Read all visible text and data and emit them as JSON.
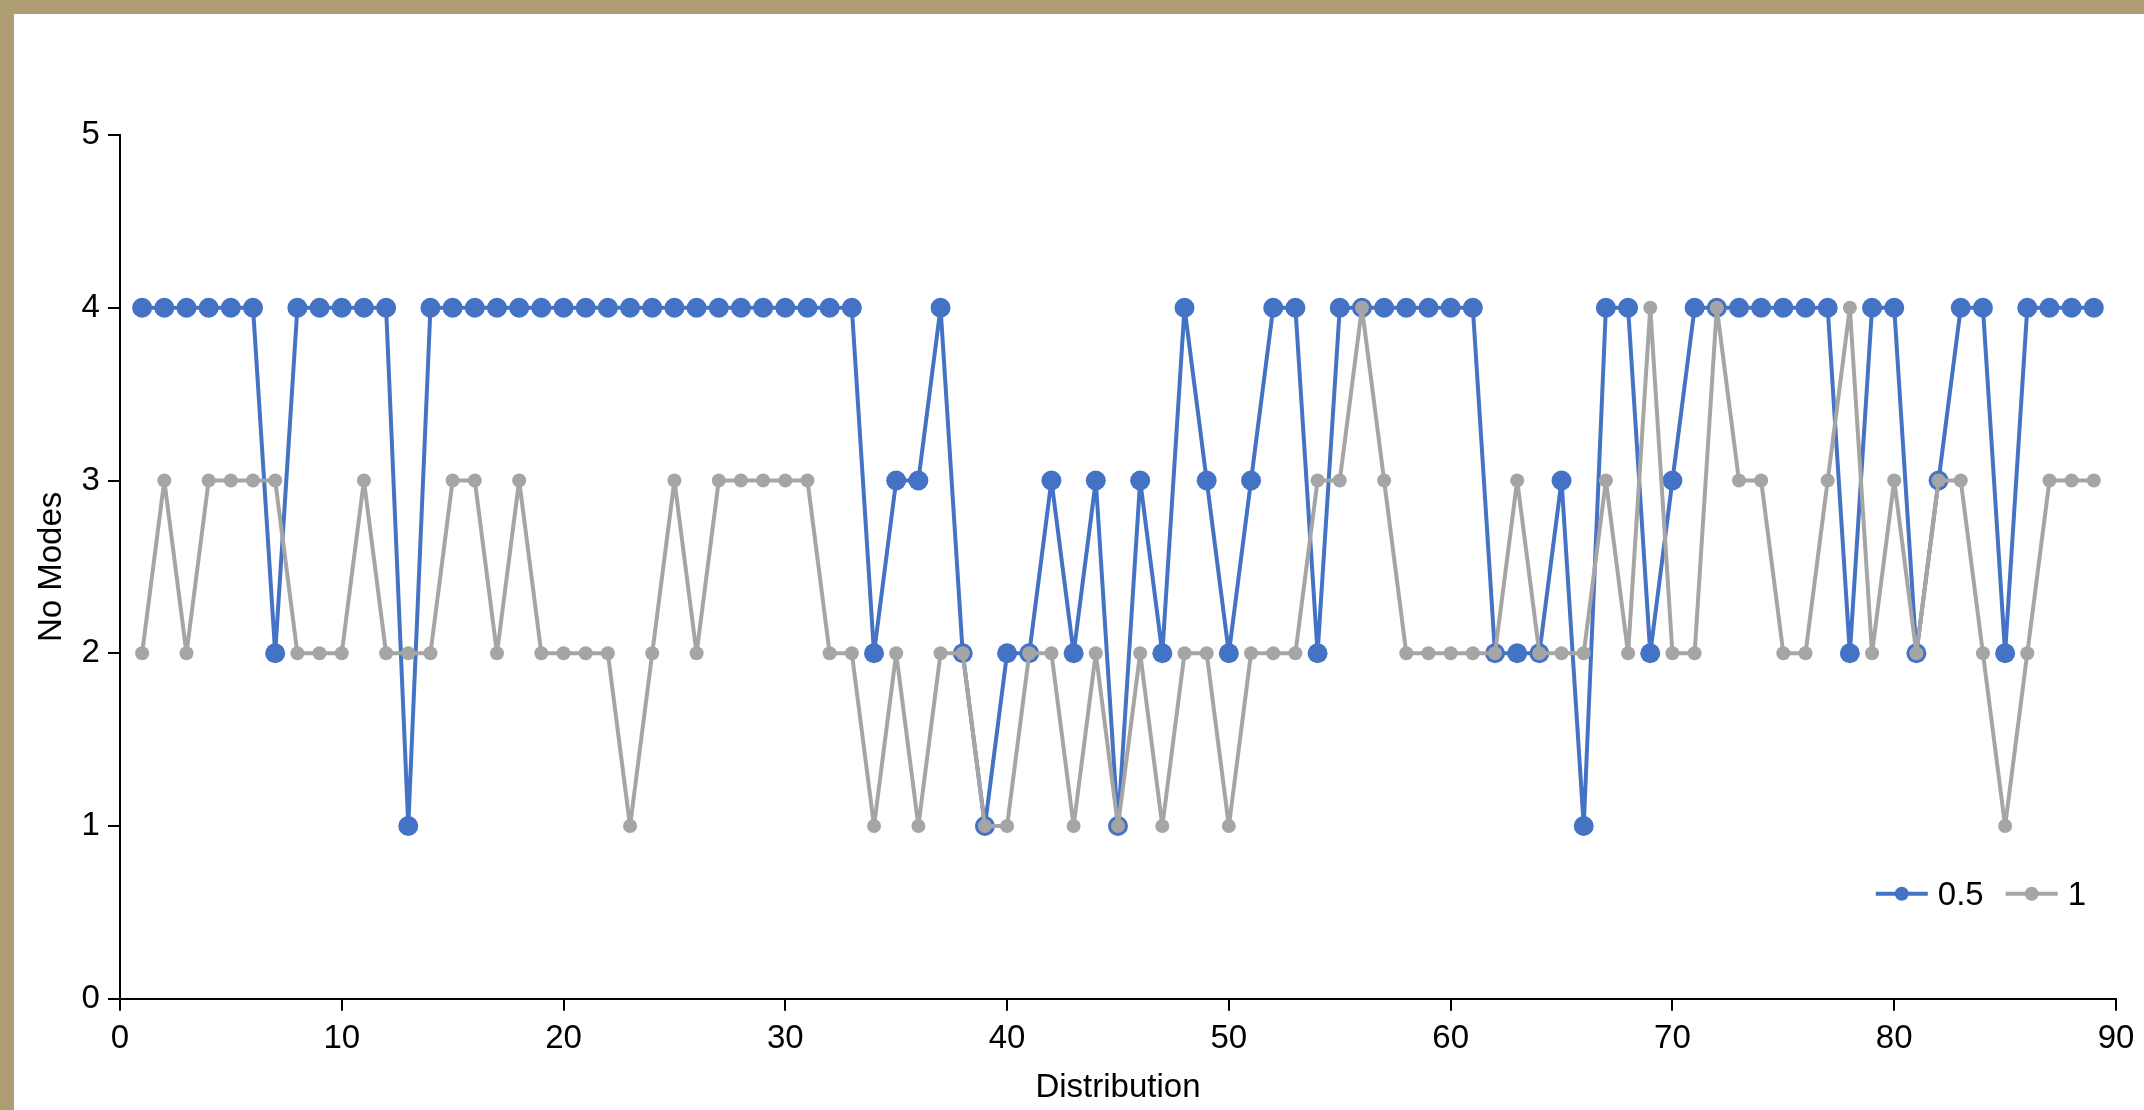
{
  "chart_data": {
    "type": "line",
    "xlabel": "Distribution",
    "ylabel": "No Modes",
    "x": [
      1,
      2,
      3,
      4,
      5,
      6,
      7,
      8,
      9,
      10,
      11,
      12,
      13,
      14,
      15,
      16,
      17,
      18,
      19,
      20,
      21,
      22,
      23,
      24,
      25,
      26,
      27,
      28,
      29,
      30,
      31,
      32,
      33,
      34,
      35,
      36,
      37,
      38,
      39,
      40,
      41,
      42,
      43,
      44,
      45,
      46,
      47,
      48,
      49,
      50,
      51,
      52,
      53,
      54,
      55,
      56,
      57,
      58,
      59,
      60,
      61,
      62,
      63,
      64,
      65,
      66,
      67,
      68,
      69,
      70,
      71,
      72,
      73,
      74,
      75,
      76,
      77,
      78,
      79,
      80,
      81,
      82,
      83,
      84,
      85,
      86,
      87,
      88,
      89
    ],
    "series": [
      {
        "name": "0.5",
        "color": "#4472c4",
        "values": [
          4,
          4,
          4,
          4,
          4,
          4,
          2,
          4,
          4,
          4,
          4,
          4,
          1,
          4,
          4,
          4,
          4,
          4,
          4,
          4,
          4,
          4,
          4,
          4,
          4,
          4,
          4,
          4,
          4,
          4,
          4,
          4,
          4,
          2,
          3,
          3,
          4,
          2,
          1,
          2,
          2,
          3,
          2,
          3,
          1,
          3,
          2,
          4,
          3,
          2,
          3,
          4,
          4,
          2,
          4,
          4,
          4,
          4,
          4,
          4,
          4,
          2,
          2,
          2,
          3,
          1,
          4,
          4,
          2,
          3,
          4,
          4,
          4,
          4,
          4,
          4,
          4,
          2,
          4,
          4,
          2,
          3,
          4,
          4,
          2,
          4,
          4,
          4,
          4
        ]
      },
      {
        "name": "1",
        "color": "#a5a5a5",
        "values": [
          2,
          3,
          2,
          3,
          3,
          3,
          3,
          2,
          2,
          2,
          3,
          2,
          2,
          2,
          3,
          3,
          2,
          3,
          2,
          2,
          2,
          2,
          1,
          2,
          3,
          2,
          3,
          3,
          3,
          3,
          3,
          2,
          2,
          1,
          2,
          1,
          2,
          2,
          1,
          1,
          2,
          2,
          1,
          2,
          1,
          2,
          1,
          2,
          2,
          1,
          2,
          2,
          2,
          3,
          3,
          4,
          3,
          2,
          2,
          2,
          2,
          2,
          3,
          2,
          2,
          2,
          3,
          2,
          4,
          2,
          2,
          4,
          3,
          3,
          2,
          2,
          3,
          4,
          2,
          3,
          2,
          3,
          3,
          2,
          1,
          2,
          3,
          3,
          3
        ]
      }
    ],
    "xlim": [
      0,
      90
    ],
    "xticks": [
      0,
      10,
      20,
      30,
      40,
      50,
      60,
      70,
      80,
      90
    ],
    "ylim": [
      0,
      5
    ],
    "yticks": [
      0,
      1,
      2,
      3,
      4,
      5
    ],
    "grid": false,
    "legend": "bottom right",
    "marker": "circle",
    "line_style": "solid"
  }
}
